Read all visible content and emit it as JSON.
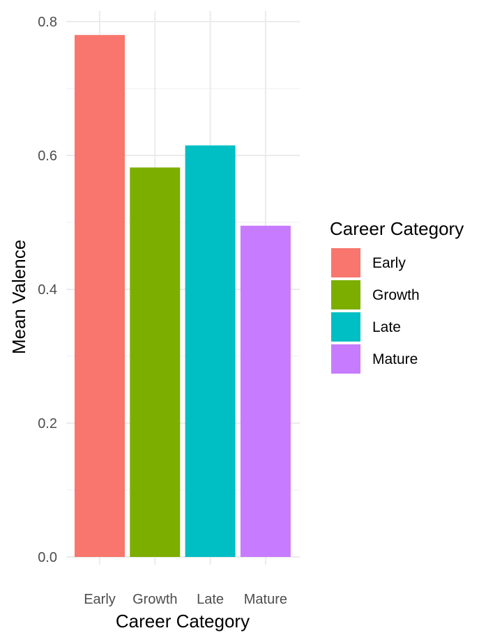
{
  "chart_data": {
    "type": "bar",
    "categories": [
      "Early",
      "Growth",
      "Late",
      "Mature"
    ],
    "values": [
      0.78,
      0.582,
      0.615,
      0.495
    ],
    "colors": [
      "#F8766D",
      "#7CAE00",
      "#00BFC4",
      "#C77CFF"
    ],
    "xlabel": "Career Category",
    "ylabel": "Mean Valence",
    "ylim": [
      0,
      0.8
    ],
    "yticks": [
      0.0,
      0.2,
      0.4,
      0.6,
      0.8
    ],
    "ytick_labels": [
      "0.0",
      "0.2",
      "0.4",
      "0.6",
      "0.8"
    ],
    "grid": true,
    "legend": {
      "title": "Career Category",
      "position": "right",
      "entries": [
        "Early",
        "Growth",
        "Late",
        "Mature"
      ]
    }
  }
}
